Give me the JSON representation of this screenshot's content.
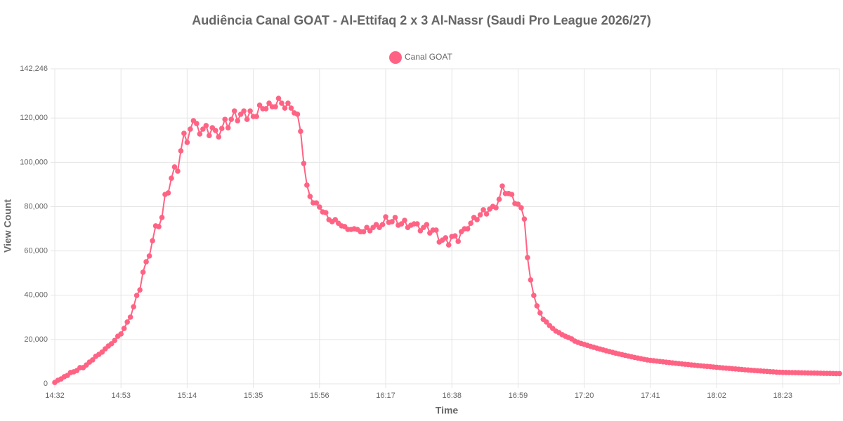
{
  "chart_data": {
    "type": "line",
    "title": "Audiência Canal GOAT - Al-Ettifaq 2 x 3 Al-Nassr (Saudi Pro League 2026/27)",
    "x_label": "Time",
    "y_label": "View Count",
    "grid": true,
    "legend": "top",
    "xtick_every": 21,
    "ylim": [
      0,
      142246
    ],
    "yticks": [
      0,
      {
        "value": 20000,
        "label": "20,000"
      },
      {
        "value": 40000,
        "label": "40,000"
      },
      {
        "value": 60000,
        "label": "60,000"
      },
      {
        "value": 80000,
        "label": "80,000"
      },
      {
        "value": 100000,
        "label": "100,000"
      },
      {
        "value": 120000,
        "label": "120,000"
      },
      {
        "value": 142246,
        "label": "142,246"
      }
    ],
    "categories": [
      "14:32",
      "14:33",
      "14:34",
      "14:35",
      "14:36",
      "14:37",
      "14:38",
      "14:39",
      "14:40",
      "14:41",
      "14:42",
      "14:43",
      "14:44",
      "14:45",
      "14:46",
      "14:47",
      "14:48",
      "14:49",
      "14:50",
      "14:51",
      "14:52",
      "14:53",
      "14:54",
      "14:55",
      "14:56",
      "14:57",
      "14:58",
      "14:59",
      "15:00",
      "15:01",
      "15:02",
      "15:03",
      "15:04",
      "15:05",
      "15:06",
      "15:07",
      "15:08",
      "15:09",
      "15:10",
      "15:11",
      "15:12",
      "15:13",
      "15:14",
      "15:15",
      "15:16",
      "15:17",
      "15:18",
      "15:19",
      "15:20",
      "15:21",
      "15:22",
      "15:23",
      "15:24",
      "15:25",
      "15:26",
      "15:27",
      "15:28",
      "15:29",
      "15:30",
      "15:31",
      "15:32",
      "15:33",
      "15:34",
      "15:35",
      "15:36",
      "15:37",
      "15:38",
      "15:39",
      "15:40",
      "15:41",
      "15:42",
      "15:43",
      "15:44",
      "15:45",
      "15:46",
      "15:47",
      "15:48",
      "15:49",
      "15:50",
      "15:51",
      "15:52",
      "15:53",
      "15:54",
      "15:55",
      "15:56",
      "15:57",
      "15:58",
      "15:59",
      "16:00",
      "16:01",
      "16:02",
      "16:03",
      "16:04",
      "16:05",
      "16:06",
      "16:07",
      "16:08",
      "16:09",
      "16:10",
      "16:11",
      "16:12",
      "16:13",
      "16:14",
      "16:15",
      "16:16",
      "16:17",
      "16:18",
      "16:19",
      "16:20",
      "16:21",
      "16:22",
      "16:23",
      "16:24",
      "16:25",
      "16:26",
      "16:27",
      "16:28",
      "16:29",
      "16:30",
      "16:31",
      "16:32",
      "16:33",
      "16:34",
      "16:35",
      "16:36",
      "16:37",
      "16:38",
      "16:39",
      "16:40",
      "16:41",
      "16:42",
      "16:43",
      "16:44",
      "16:45",
      "16:46",
      "16:47",
      "16:48",
      "16:49",
      "16:50",
      "16:51",
      "16:52",
      "16:53",
      "16:54",
      "16:55",
      "16:56",
      "16:57",
      "16:58",
      "16:59",
      "17:00",
      "17:01",
      "17:02",
      "17:03",
      "17:04",
      "17:05",
      "17:06",
      "17:07",
      "17:08",
      "17:09",
      "17:10",
      "17:11",
      "17:12",
      "17:13",
      "17:14",
      "17:15",
      "17:16",
      "17:17",
      "17:18",
      "17:19",
      "17:20",
      "17:21",
      "17:22",
      "17:23",
      "17:24",
      "17:25",
      "17:26",
      "17:27",
      "17:28",
      "17:29",
      "17:30",
      "17:31",
      "17:32",
      "17:33",
      "17:34",
      "17:35",
      "17:36",
      "17:37",
      "17:38",
      "17:39",
      "17:40",
      "17:41",
      "17:42",
      "17:43",
      "17:44",
      "17:45",
      "17:46",
      "17:47",
      "17:48",
      "17:49",
      "17:50",
      "17:51",
      "17:52",
      "17:53",
      "17:54",
      "17:55",
      "17:56",
      "17:57",
      "17:58",
      "17:59",
      "18:00",
      "18:01",
      "18:02",
      "18:03",
      "18:04",
      "18:05",
      "18:06",
      "18:07",
      "18:08",
      "18:09",
      "18:10",
      "18:11",
      "18:12",
      "18:13",
      "18:14",
      "18:15",
      "18:16",
      "18:17",
      "18:18",
      "18:19",
      "18:20",
      "18:21",
      "18:22",
      "18:23",
      "18:24",
      "18:25",
      "18:26",
      "18:27",
      "18:28",
      "18:29",
      "18:30",
      "18:31",
      "18:32",
      "18:33",
      "18:34",
      "18:35",
      "18:36",
      "18:37",
      "18:38",
      "18:39",
      "18:40",
      "18:41"
    ],
    "series": [
      {
        "name": "Canal GOAT",
        "color": "#ff6384",
        "values": [
          600,
          1600,
          2200,
          3200,
          3800,
          5100,
          5400,
          6000,
          7300,
          7300,
          8500,
          9800,
          10800,
          12400,
          13300,
          14300,
          15800,
          17100,
          18100,
          19600,
          21500,
          22500,
          25000,
          27900,
          30100,
          34800,
          39900,
          42400,
          50400,
          55100,
          57700,
          64600,
          71300,
          71000,
          75100,
          85500,
          86200,
          92800,
          97900,
          96000,
          105200,
          113100,
          109000,
          115000,
          118800,
          117500,
          112800,
          115000,
          116600,
          112100,
          115600,
          114400,
          111500,
          115300,
          119400,
          115600,
          119400,
          123200,
          118800,
          121700,
          123200,
          119400,
          123200,
          120700,
          120700,
          125800,
          124200,
          124200,
          126700,
          125100,
          125100,
          128900,
          126700,
          124500,
          126700,
          124500,
          122300,
          121700,
          114000,
          99500,
          89700,
          84600,
          81700,
          81700,
          79800,
          77600,
          77300,
          74100,
          73200,
          74100,
          72500,
          71300,
          71000,
          69700,
          69700,
          70000,
          69700,
          68700,
          68700,
          70600,
          69100,
          70600,
          71900,
          70600,
          71900,
          75400,
          72900,
          73200,
          75100,
          71600,
          72200,
          73800,
          70600,
          71600,
          72200,
          72200,
          69100,
          70600,
          71900,
          68100,
          69400,
          69400,
          64000,
          64900,
          65900,
          62700,
          66500,
          66800,
          64300,
          68700,
          70000,
          70000,
          72500,
          75100,
          74100,
          76300,
          78600,
          76700,
          78900,
          80100,
          79500,
          83300,
          89300,
          85900,
          85900,
          85500,
          81400,
          81100,
          79500,
          74400,
          57000,
          46900,
          39900,
          35200,
          32000,
          29100,
          27900,
          26300,
          25000,
          23800,
          23100,
          22200,
          21500,
          20900,
          20300,
          19300,
          18700,
          18240,
          17790,
          17350,
          16920,
          16500,
          16090,
          15690,
          15300,
          14920,
          14550,
          14190,
          13840,
          13500,
          13170,
          12840,
          12520,
          12210,
          11910,
          11620,
          11330,
          11050,
          10780,
          10600,
          10430,
          10260,
          10090,
          9920,
          9760,
          9600,
          9440,
          9280,
          9130,
          8980,
          8830,
          8680,
          8540,
          8400,
          8260,
          8120,
          7990,
          7860,
          7730,
          7600,
          7460,
          7330,
          7200,
          7070,
          6940,
          6820,
          6700,
          6580,
          6460,
          6340,
          6230,
          6120,
          6010,
          5900,
          5790,
          5690,
          5590,
          5490,
          5390,
          5290,
          5200,
          5170,
          5140,
          5100,
          5070,
          5040,
          5000,
          4970,
          4940,
          4900,
          4870,
          4840,
          4800,
          4770,
          4740,
          4710,
          4680,
          4650,
          4620,
          4600
        ]
      }
    ]
  }
}
